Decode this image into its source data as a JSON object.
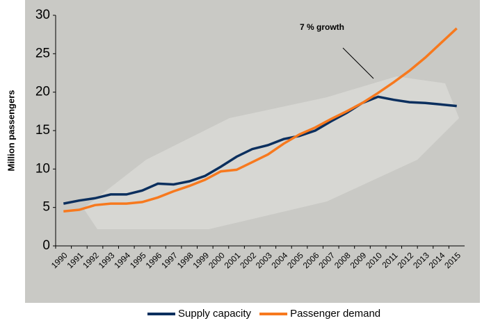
{
  "chart_data": {
    "type": "line",
    "y_label": "Million passengers",
    "annotation": "7 % growth",
    "categories": [
      "1990",
      "1991",
      "1992",
      "1993",
      "1994",
      "1995",
      "1996",
      "1997",
      "1998",
      "1999",
      "2000",
      "2001",
      "2002",
      "2003",
      "2004",
      "2005",
      "2006",
      "2007",
      "2008",
      "2009",
      "2010",
      "2011",
      "2012",
      "2013",
      "2014",
      "2015"
    ],
    "series": [
      {
        "name": "Supply capacity",
        "color": "#0b2f5e",
        "values": [
          5.5,
          5.9,
          6.2,
          6.7,
          6.7,
          7.2,
          8.1,
          8.0,
          8.4,
          9.1,
          10.3,
          11.6,
          12.6,
          13.1,
          13.9,
          14.3,
          15.0,
          16.2,
          17.3,
          18.6,
          19.4,
          19.0,
          18.7,
          18.6,
          18.4,
          18.2
        ]
      },
      {
        "name": "Passenger demand",
        "color": "#f7791e",
        "values": [
          4.5,
          4.7,
          5.3,
          5.5,
          5.5,
          5.7,
          6.3,
          7.1,
          7.8,
          8.6,
          9.7,
          9.9,
          10.9,
          11.9,
          13.3,
          14.5,
          15.4,
          16.5,
          17.5,
          18.6,
          19.9,
          21.3,
          22.8,
          24.5,
          26.4,
          28.3
        ]
      }
    ],
    "ylim": [
      0,
      30
    ],
    "yticks": [
      0,
      5,
      10,
      15,
      20,
      25,
      30
    ],
    "grid": false
  }
}
